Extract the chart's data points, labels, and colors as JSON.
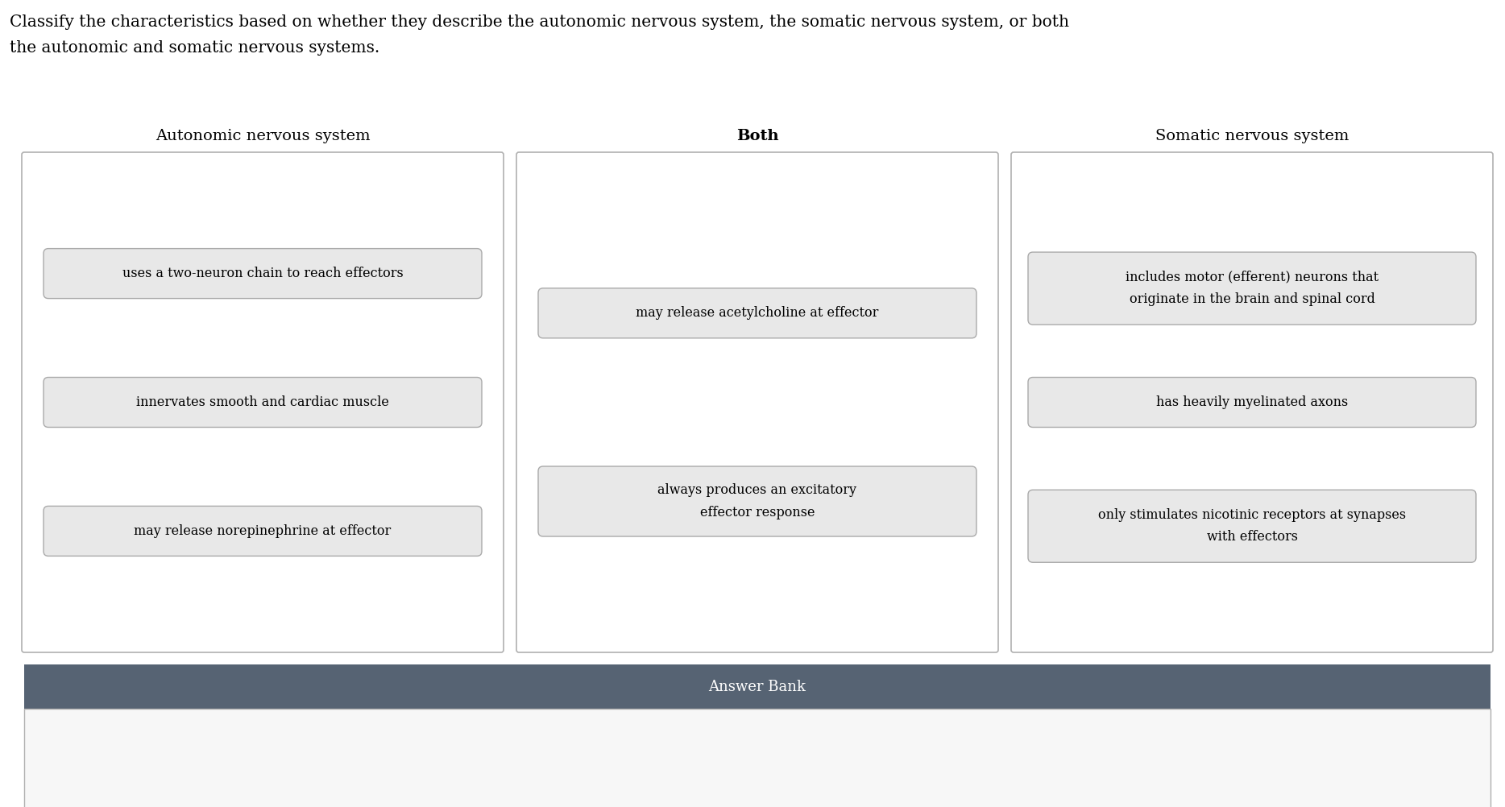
{
  "title_line1": "Classify the characteristics based on whether they describe the autonomic nervous system, the somatic nervous system, or both",
  "title_line2": "the autonomic and somatic nervous systems.",
  "col_headers": [
    "Autonomic nervous system",
    "Both",
    "Somatic nervous system"
  ],
  "autonomic_items": [
    "uses a two-neuron chain to reach effectors",
    "innervates smooth and cardiac muscle",
    "may release norepinephrine at effector"
  ],
  "both_items": [
    "may release acetylcholine at effector",
    "always produces an excitatory\neffector response"
  ],
  "somatic_items": [
    "includes motor (efferent) neurons that\noriginate in the brain and spinal cord",
    "has heavily myelinated axons",
    "only stimulates nicotinic receptors at synapses\nwith effectors"
  ],
  "answer_bank_header": "Answer Bank",
  "answer_bank_bg": "#566373",
  "answer_bank_text_color": "#ffffff",
  "outer_box_edge": "#b0b0b0",
  "outer_box_face": "#ffffff",
  "item_box_bg": "#e8e8e8",
  "item_box_border": "#aaaaaa",
  "bg_color": "#ffffff",
  "ab_body_color": "#f7f7f7",
  "title_fontsize": 14.5,
  "header_fontsize": 14,
  "item_fontsize": 11.5,
  "answer_bank_fontsize": 13,
  "fig_w": 18.68,
  "fig_h": 10.02,
  "dpi": 100
}
